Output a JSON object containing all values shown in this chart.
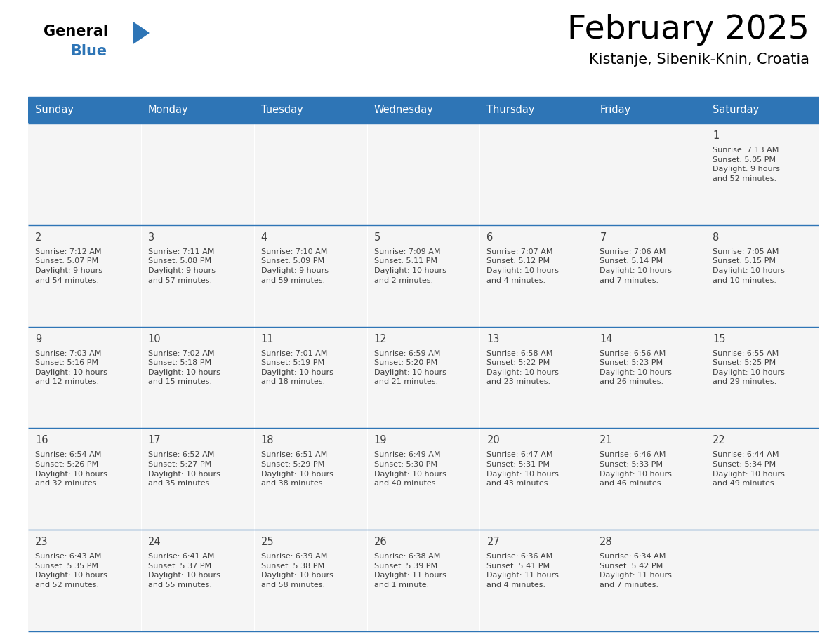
{
  "title": "February 2025",
  "subtitle": "Kistanje, Sibenik-Knin, Croatia",
  "header_color": "#2E75B6",
  "header_text_color": "#FFFFFF",
  "cell_bg_even": "#FFFFFF",
  "cell_bg_odd": "#F2F2F2",
  "border_color": "#2E75B6",
  "text_color": "#404040",
  "day_num_color": "#404040",
  "days_of_week": [
    "Sunday",
    "Monday",
    "Tuesday",
    "Wednesday",
    "Thursday",
    "Friday",
    "Saturday"
  ],
  "weeks": [
    [
      {
        "day": null,
        "info": null
      },
      {
        "day": null,
        "info": null
      },
      {
        "day": null,
        "info": null
      },
      {
        "day": null,
        "info": null
      },
      {
        "day": null,
        "info": null
      },
      {
        "day": null,
        "info": null
      },
      {
        "day": "1",
        "info": "Sunrise: 7:13 AM\nSunset: 5:05 PM\nDaylight: 9 hours\nand 52 minutes."
      }
    ],
    [
      {
        "day": "2",
        "info": "Sunrise: 7:12 AM\nSunset: 5:07 PM\nDaylight: 9 hours\nand 54 minutes."
      },
      {
        "day": "3",
        "info": "Sunrise: 7:11 AM\nSunset: 5:08 PM\nDaylight: 9 hours\nand 57 minutes."
      },
      {
        "day": "4",
        "info": "Sunrise: 7:10 AM\nSunset: 5:09 PM\nDaylight: 9 hours\nand 59 minutes."
      },
      {
        "day": "5",
        "info": "Sunrise: 7:09 AM\nSunset: 5:11 PM\nDaylight: 10 hours\nand 2 minutes."
      },
      {
        "day": "6",
        "info": "Sunrise: 7:07 AM\nSunset: 5:12 PM\nDaylight: 10 hours\nand 4 minutes."
      },
      {
        "day": "7",
        "info": "Sunrise: 7:06 AM\nSunset: 5:14 PM\nDaylight: 10 hours\nand 7 minutes."
      },
      {
        "day": "8",
        "info": "Sunrise: 7:05 AM\nSunset: 5:15 PM\nDaylight: 10 hours\nand 10 minutes."
      }
    ],
    [
      {
        "day": "9",
        "info": "Sunrise: 7:03 AM\nSunset: 5:16 PM\nDaylight: 10 hours\nand 12 minutes."
      },
      {
        "day": "10",
        "info": "Sunrise: 7:02 AM\nSunset: 5:18 PM\nDaylight: 10 hours\nand 15 minutes."
      },
      {
        "day": "11",
        "info": "Sunrise: 7:01 AM\nSunset: 5:19 PM\nDaylight: 10 hours\nand 18 minutes."
      },
      {
        "day": "12",
        "info": "Sunrise: 6:59 AM\nSunset: 5:20 PM\nDaylight: 10 hours\nand 21 minutes."
      },
      {
        "day": "13",
        "info": "Sunrise: 6:58 AM\nSunset: 5:22 PM\nDaylight: 10 hours\nand 23 minutes."
      },
      {
        "day": "14",
        "info": "Sunrise: 6:56 AM\nSunset: 5:23 PM\nDaylight: 10 hours\nand 26 minutes."
      },
      {
        "day": "15",
        "info": "Sunrise: 6:55 AM\nSunset: 5:25 PM\nDaylight: 10 hours\nand 29 minutes."
      }
    ],
    [
      {
        "day": "16",
        "info": "Sunrise: 6:54 AM\nSunset: 5:26 PM\nDaylight: 10 hours\nand 32 minutes."
      },
      {
        "day": "17",
        "info": "Sunrise: 6:52 AM\nSunset: 5:27 PM\nDaylight: 10 hours\nand 35 minutes."
      },
      {
        "day": "18",
        "info": "Sunrise: 6:51 AM\nSunset: 5:29 PM\nDaylight: 10 hours\nand 38 minutes."
      },
      {
        "day": "19",
        "info": "Sunrise: 6:49 AM\nSunset: 5:30 PM\nDaylight: 10 hours\nand 40 minutes."
      },
      {
        "day": "20",
        "info": "Sunrise: 6:47 AM\nSunset: 5:31 PM\nDaylight: 10 hours\nand 43 minutes."
      },
      {
        "day": "21",
        "info": "Sunrise: 6:46 AM\nSunset: 5:33 PM\nDaylight: 10 hours\nand 46 minutes."
      },
      {
        "day": "22",
        "info": "Sunrise: 6:44 AM\nSunset: 5:34 PM\nDaylight: 10 hours\nand 49 minutes."
      }
    ],
    [
      {
        "day": "23",
        "info": "Sunrise: 6:43 AM\nSunset: 5:35 PM\nDaylight: 10 hours\nand 52 minutes."
      },
      {
        "day": "24",
        "info": "Sunrise: 6:41 AM\nSunset: 5:37 PM\nDaylight: 10 hours\nand 55 minutes."
      },
      {
        "day": "25",
        "info": "Sunrise: 6:39 AM\nSunset: 5:38 PM\nDaylight: 10 hours\nand 58 minutes."
      },
      {
        "day": "26",
        "info": "Sunrise: 6:38 AM\nSunset: 5:39 PM\nDaylight: 11 hours\nand 1 minute."
      },
      {
        "day": "27",
        "info": "Sunrise: 6:36 AM\nSunset: 5:41 PM\nDaylight: 11 hours\nand 4 minutes."
      },
      {
        "day": "28",
        "info": "Sunrise: 6:34 AM\nSunset: 5:42 PM\nDaylight: 11 hours\nand 7 minutes."
      },
      {
        "day": null,
        "info": null
      }
    ]
  ],
  "fig_width": 11.88,
  "fig_height": 9.18,
  "dpi": 100
}
